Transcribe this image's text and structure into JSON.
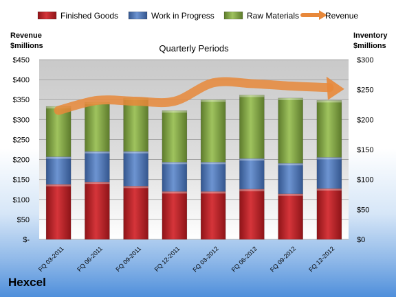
{
  "chart_data": {
    "type": "bar",
    "stacked": true,
    "title": "Quarterly Periods",
    "categories": [
      "FQ 03-2011",
      "FQ 06-2011",
      "FQ 09-2011",
      "FQ 12-2011",
      "FQ 03-2012",
      "FQ 06-2012",
      "FQ 09-2012",
      "FQ 12-2012"
    ],
    "left_axis": {
      "label_line1": "Revenue",
      "label_line2": "$millions",
      "min": 0,
      "max": 450,
      "step": 50,
      "tick_labels": [
        "$-",
        "$50",
        "$100",
        "$150",
        "$200",
        "$250",
        "$300",
        "$350",
        "$400",
        "$450"
      ]
    },
    "right_axis": {
      "label_line1": "Inventory",
      "label_line2": "$millions",
      "min": 0,
      "max": 300,
      "step": 50,
      "tick_labels": [
        "$0",
        "$50",
        "$100",
        "$150",
        "$200",
        "$250",
        "$300"
      ]
    },
    "series": [
      {
        "name": "Finished Goods",
        "axis": "right",
        "color": "#c0272d",
        "values": [
          92,
          96,
          89,
          80,
          80,
          84,
          76,
          85
        ]
      },
      {
        "name": "Work in Progress",
        "axis": "right",
        "color": "#4f76b8",
        "values": [
          46,
          51,
          58,
          49,
          49,
          51,
          51,
          52
        ]
      },
      {
        "name": "Raw Materials",
        "axis": "right",
        "color": "#84a847",
        "values": [
          84,
          82,
          89,
          86,
          104,
          106,
          109,
          95
        ]
      },
      {
        "name": "Revenue",
        "axis": "left",
        "type": "line",
        "color": "#e8883a",
        "values": [
          323,
          348,
          346,
          346,
          392,
          390,
          384,
          380
        ]
      }
    ],
    "legend_position": "top",
    "grid": true
  },
  "company": "Hexcel"
}
